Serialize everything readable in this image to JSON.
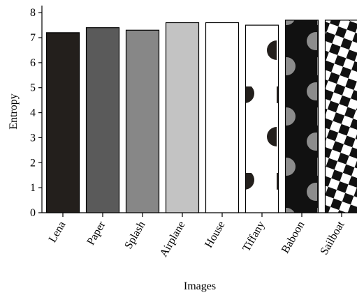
{
  "chart_data": {
    "type": "bar",
    "x_label": "Images",
    "y_label": "Entropy",
    "categories": [
      "Lena",
      "Paper",
      "Splash",
      "Airplane",
      "House",
      "Tiffany",
      "Baboon",
      "Sailboat"
    ],
    "values": [
      7.2,
      7.4,
      7.3,
      7.6,
      7.6,
      7.5,
      7.7,
      7.7
    ],
    "colors": [
      "#231f1c",
      "#5a5a5a",
      "#878787",
      "#c3c3c3",
      "#ffffff",
      "#ffffff",
      "#111111",
      "#ffffff"
    ],
    "ylim": [
      0,
      8.2
    ],
    "yticks": [
      0,
      1,
      2,
      3,
      4,
      5,
      6,
      7,
      8
    ]
  }
}
